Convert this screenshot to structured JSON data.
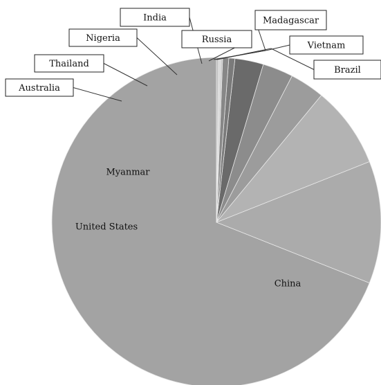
{
  "chart_data": {
    "type": "pie",
    "title": "",
    "slices": [
      {
        "label": "China",
        "value": 69.0,
        "color": "#a3a3a3"
      },
      {
        "label": "United States",
        "value": 12.0,
        "color": "#ababab"
      },
      {
        "label": "Myanmar",
        "value": 8.0,
        "color": "#b3b3b3"
      },
      {
        "label": "Australia",
        "value": 3.4,
        "color": "#9c9c9c"
      },
      {
        "label": "Thailand",
        "value": 3.0,
        "color": "#8c8c8c"
      },
      {
        "label": "Nigeria",
        "value": 2.8,
        "color": "#6a6a6a"
      },
      {
        "label": "India",
        "value": 0.6,
        "color": "#7a7a7a"
      },
      {
        "label": "Russia",
        "value": 0.6,
        "color": "#878787"
      },
      {
        "label": "Vietnam",
        "value": 0.2,
        "color": "#c9c9c9"
      },
      {
        "label": "Brazil",
        "value": 0.2,
        "color": "#d6d6d6"
      },
      {
        "label": "Madagascar",
        "value": 0.2,
        "color": "#bfbfbf"
      }
    ],
    "legend": "none"
  }
}
